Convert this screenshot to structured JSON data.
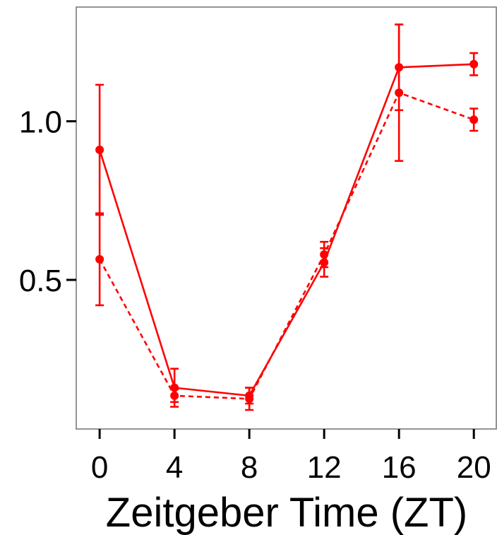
{
  "chart_data": {
    "type": "line",
    "title": "",
    "xlabel": "Zeitgeber Time (ZT)",
    "ylabel": "",
    "x": [
      0,
      4,
      8,
      12,
      16,
      20
    ],
    "x_ticks": [
      "0",
      "4",
      "8",
      "12",
      "16",
      "20"
    ],
    "y_ticks": [
      {
        "value": 0.5,
        "label": "0.5"
      },
      {
        "value": 1.0,
        "label": "1.0"
      }
    ],
    "xlim": [
      -1.25,
      21.2
    ],
    "ylim": [
      0.03,
      1.36
    ],
    "grid": false,
    "legend": "none",
    "series": [
      {
        "style": "solid",
        "color": "#ff0000",
        "values": [
          0.91,
          0.16,
          0.135,
          0.555,
          1.17,
          1.18
        ],
        "error": [
          0.205,
          0.06,
          0.025,
          0.045,
          0.135,
          0.035
        ]
      },
      {
        "style": "dashed",
        "color": "#ff0000",
        "values": [
          0.565,
          0.135,
          0.125,
          0.58,
          1.09,
          1.005
        ],
        "error": [
          0.145,
          0.02,
          0.035,
          0.04,
          0.215,
          0.035
        ]
      }
    ]
  }
}
